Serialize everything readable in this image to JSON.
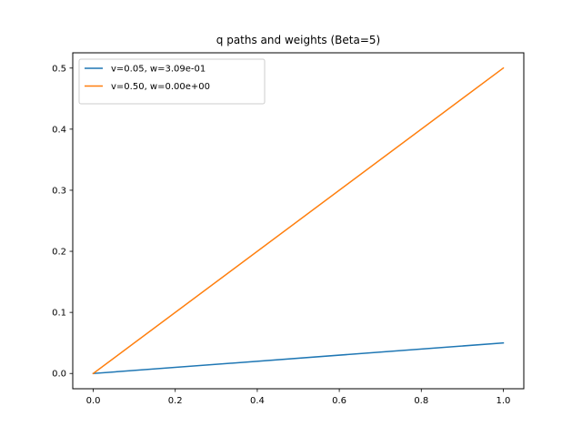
{
  "chart_data": {
    "type": "line",
    "title": "q paths and weights (Beta=5)",
    "xlabel": "",
    "ylabel": "",
    "xlim": [
      -0.05,
      1.05
    ],
    "ylim": [
      -0.025,
      0.525
    ],
    "xticks": [
      0.0,
      0.2,
      0.4,
      0.6,
      0.8,
      1.0
    ],
    "xtick_labels": [
      "0.0",
      "0.2",
      "0.4",
      "0.6",
      "0.8",
      "1.0"
    ],
    "yticks": [
      0.0,
      0.1,
      0.2,
      0.3,
      0.4,
      0.5
    ],
    "ytick_labels": [
      "0.0",
      "0.1",
      "0.2",
      "0.3",
      "0.4",
      "0.5"
    ],
    "grid": false,
    "legend_position": "top-left",
    "series": [
      {
        "name": "v=0.05, w=3.09e-01",
        "color": "#1f77b4",
        "x": [
          0.0,
          1.0
        ],
        "y": [
          0.0,
          0.05
        ]
      },
      {
        "name": "v=0.50, w=0.00e+00",
        "color": "#ff7f0e",
        "x": [
          0.0,
          1.0
        ],
        "y": [
          0.0,
          0.5
        ]
      }
    ]
  }
}
